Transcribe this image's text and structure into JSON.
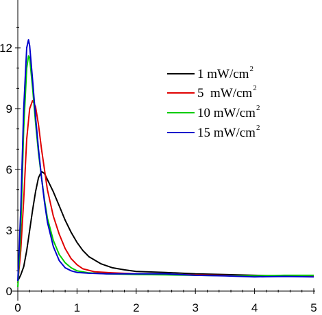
{
  "chart_data": {
    "type": "line",
    "title": "",
    "xlabel": "",
    "ylabel": "",
    "xlim": [
      0,
      5
    ],
    "ylim": [
      0,
      13.5
    ],
    "xticks": [
      "0",
      "1",
      "2",
      "3",
      "4",
      "5"
    ],
    "yticks": [
      "0",
      "3",
      "6",
      "9",
      "12"
    ],
    "grid": false,
    "legend_position": "top-right",
    "series": [
      {
        "name": "1 mW/cm",
        "superscript": "2",
        "color": "#000000",
        "points": [
          [
            0,
            0.5
          ],
          [
            0.05,
            0.8
          ],
          [
            0.1,
            1.2
          ],
          [
            0.15,
            2.0
          ],
          [
            0.2,
            3.0
          ],
          [
            0.25,
            4.0
          ],
          [
            0.3,
            4.9
          ],
          [
            0.35,
            5.6
          ],
          [
            0.4,
            5.9
          ],
          [
            0.45,
            5.8
          ],
          [
            0.5,
            5.5
          ],
          [
            0.6,
            4.9
          ],
          [
            0.7,
            4.2
          ],
          [
            0.8,
            3.5
          ],
          [
            0.9,
            2.9
          ],
          [
            1.0,
            2.4
          ],
          [
            1.1,
            2.0
          ],
          [
            1.2,
            1.7
          ],
          [
            1.4,
            1.35
          ],
          [
            1.6,
            1.15
          ],
          [
            1.8,
            1.05
          ],
          [
            2.0,
            0.97
          ],
          [
            2.5,
            0.92
          ],
          [
            3.0,
            0.85
          ],
          [
            3.5,
            0.82
          ],
          [
            4.0,
            0.78
          ],
          [
            4.5,
            0.75
          ],
          [
            5.0,
            0.75
          ]
        ]
      },
      {
        "name": "5  mW/cm",
        "superscript": "2",
        "color": "#e00000",
        "points": [
          [
            0,
            0.4
          ],
          [
            0.05,
            2.0
          ],
          [
            0.1,
            4.5
          ],
          [
            0.15,
            7.5
          ],
          [
            0.2,
            9.0
          ],
          [
            0.25,
            9.4
          ],
          [
            0.3,
            9.1
          ],
          [
            0.35,
            8.2
          ],
          [
            0.4,
            7.0
          ],
          [
            0.45,
            6.0
          ],
          [
            0.5,
            5.0
          ],
          [
            0.6,
            3.7
          ],
          [
            0.7,
            2.8
          ],
          [
            0.8,
            2.1
          ],
          [
            0.9,
            1.6
          ],
          [
            1.0,
            1.3
          ],
          [
            1.1,
            1.1
          ],
          [
            1.3,
            0.95
          ],
          [
            1.6,
            0.9
          ],
          [
            2.0,
            0.85
          ],
          [
            2.5,
            0.82
          ],
          [
            3.0,
            0.8
          ],
          [
            3.5,
            0.78
          ],
          [
            4.0,
            0.75
          ],
          [
            4.5,
            0.73
          ],
          [
            5.0,
            0.72
          ]
        ]
      },
      {
        "name": "10 mW/cm",
        "superscript": "2",
        "color": "#00cc00",
        "points": [
          [
            0,
            0.2
          ],
          [
            0.05,
            3.0
          ],
          [
            0.1,
            8.0
          ],
          [
            0.15,
            11.0
          ],
          [
            0.18,
            11.6
          ],
          [
            0.2,
            11.5
          ],
          [
            0.25,
            10.0
          ],
          [
            0.3,
            8.3
          ],
          [
            0.35,
            6.8
          ],
          [
            0.4,
            5.6
          ],
          [
            0.45,
            4.5
          ],
          [
            0.5,
            3.6
          ],
          [
            0.6,
            2.5
          ],
          [
            0.7,
            1.8
          ],
          [
            0.8,
            1.4
          ],
          [
            0.9,
            1.15
          ],
          [
            1.0,
            1.0
          ],
          [
            1.2,
            0.9
          ],
          [
            1.5,
            0.85
          ],
          [
            2.0,
            0.82
          ],
          [
            2.5,
            0.8
          ],
          [
            3.0,
            0.78
          ],
          [
            3.5,
            0.76
          ],
          [
            4.0,
            0.75
          ],
          [
            4.5,
            0.78
          ],
          [
            5.0,
            0.78
          ]
        ]
      },
      {
        "name": "15 mW/cm",
        "superscript": "2",
        "color": "#0000cc",
        "points": [
          [
            0,
            0.5
          ],
          [
            0.05,
            4.0
          ],
          [
            0.1,
            9.0
          ],
          [
            0.15,
            12.0
          ],
          [
            0.18,
            12.4
          ],
          [
            0.2,
            12.1
          ],
          [
            0.25,
            10.4
          ],
          [
            0.3,
            8.6
          ],
          [
            0.35,
            7.0
          ],
          [
            0.4,
            5.6
          ],
          [
            0.45,
            4.4
          ],
          [
            0.5,
            3.4
          ],
          [
            0.6,
            2.2
          ],
          [
            0.7,
            1.5
          ],
          [
            0.8,
            1.15
          ],
          [
            0.9,
            1.0
          ],
          [
            1.0,
            0.92
          ],
          [
            1.2,
            0.88
          ],
          [
            1.5,
            0.85
          ],
          [
            2.0,
            0.85
          ],
          [
            2.5,
            0.85
          ],
          [
            3.0,
            0.78
          ],
          [
            3.5,
            0.75
          ],
          [
            4.0,
            0.7
          ],
          [
            4.5,
            0.72
          ],
          [
            5.0,
            0.7
          ]
        ]
      }
    ]
  }
}
